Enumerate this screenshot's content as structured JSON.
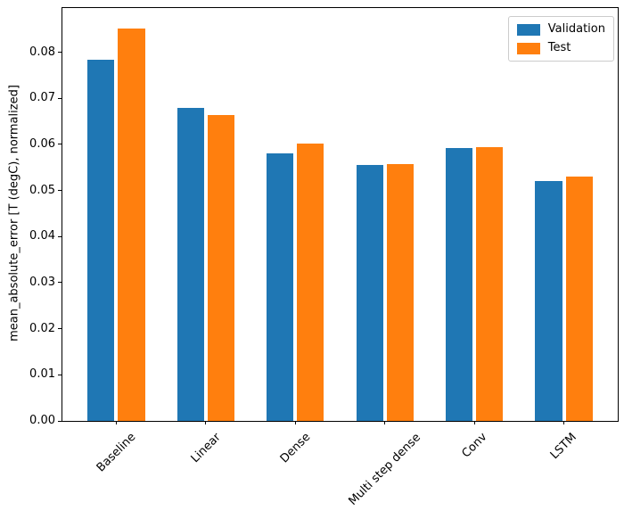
{
  "chart_data": {
    "type": "bar",
    "title": "",
    "xlabel": "",
    "ylabel": "mean_absolute_error [T (degC), normalized]",
    "categories": [
      "Baseline",
      "Linear",
      "Dense",
      "Multi step dense",
      "Conv",
      "LSTM"
    ],
    "series": [
      {
        "name": "Validation",
        "color": "#1f77b4",
        "values": [
          0.0784,
          0.0679,
          0.058,
          0.0556,
          0.0593,
          0.0521
        ]
      },
      {
        "name": "Test",
        "color": "#ff7f0e",
        "values": [
          0.0852,
          0.0663,
          0.0602,
          0.0558,
          0.0595,
          0.053
        ]
      }
    ],
    "ylim": [
      0,
      0.0896
    ],
    "yticks": [
      0,
      0.01,
      0.02,
      0.03,
      0.04,
      0.05,
      0.06,
      0.07,
      0.08
    ],
    "ytick_labels": [
      "0.00",
      "0.01",
      "0.02",
      "0.03",
      "0.04",
      "0.05",
      "0.06",
      "0.07",
      "0.08"
    ],
    "x_tick_rotation": 45,
    "grid": false,
    "bar_layout": {
      "offsets": [
        -0.17,
        0.17
      ],
      "width": 0.3
    },
    "legend": {
      "position": "upper right",
      "entries": [
        "Validation",
        "Test"
      ]
    }
  }
}
